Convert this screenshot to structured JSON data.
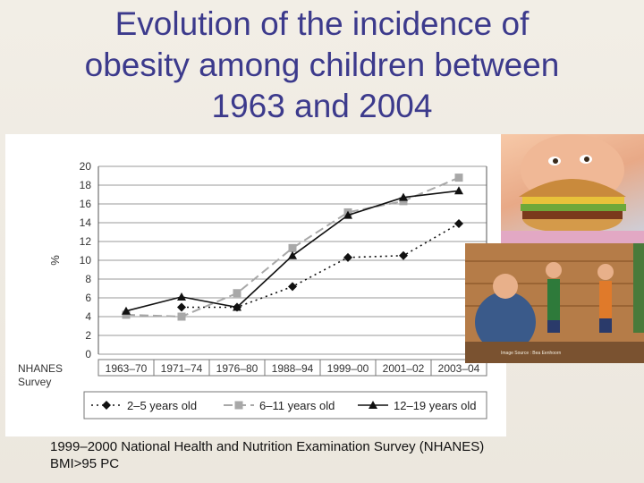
{
  "slide": {
    "title_lines": [
      "Evolution of the incidence of",
      "obesity among children between",
      "1963 and 2004"
    ],
    "footnote_lines": [
      "1999–2000 National Health and Nutrition Examination Survey (NHANES)",
      "BMI>95 PC"
    ]
  },
  "photos": {
    "burger_credit": "",
    "gym_credit": "Image Source : Bea Eenhoorn"
  },
  "chart_data": {
    "type": "line",
    "title": "",
    "ylabel": "%",
    "xlabel": "",
    "source_label": [
      "NHANES",
      "Survey"
    ],
    "categories": [
      "1963–70",
      "1971–74",
      "1976–80",
      "1988–94",
      "1999–00",
      "2001–02",
      "2003–04"
    ],
    "ylim": [
      0,
      20
    ],
    "yticks": [
      0,
      2,
      4,
      6,
      8,
      10,
      12,
      14,
      16,
      18,
      20
    ],
    "grid": true,
    "legend_position": "bottom",
    "series": [
      {
        "name": "2–5 years old",
        "style": "dotted",
        "marker": "diamond",
        "color": "#111111",
        "points": [
          [
            1,
            5.0
          ],
          [
            2,
            5.0
          ],
          [
            3,
            7.2
          ],
          [
            4,
            10.3
          ],
          [
            5,
            10.5
          ],
          [
            6,
            13.9
          ]
        ]
      },
      {
        "name": "6–11 years old",
        "style": "dashed",
        "marker": "square",
        "color": "#a8a8a8",
        "points": [
          [
            0,
            4.2
          ],
          [
            1,
            4.0
          ],
          [
            2,
            6.5
          ],
          [
            3,
            11.3
          ],
          [
            4,
            15.1
          ],
          [
            5,
            16.3
          ],
          [
            6,
            18.8
          ]
        ]
      },
      {
        "name": "12–19 years old",
        "style": "solid",
        "marker": "triangle",
        "color": "#111111",
        "points": [
          [
            0,
            4.6
          ],
          [
            1,
            6.1
          ],
          [
            2,
            5.0
          ],
          [
            3,
            10.5
          ],
          [
            4,
            14.8
          ],
          [
            5,
            16.7
          ],
          [
            6,
            17.4
          ]
        ]
      }
    ]
  }
}
